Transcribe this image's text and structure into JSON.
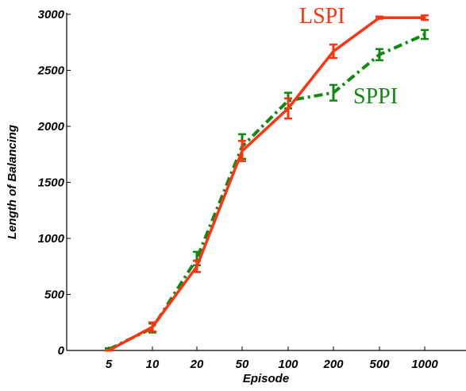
{
  "chart_data": {
    "type": "line",
    "title": "",
    "xlabel": "Episode",
    "ylabel": "Length of Balancing",
    "categories": [
      "5",
      "10",
      "20",
      "50",
      "100",
      "200",
      "500",
      "1000"
    ],
    "ylim": [
      0,
      3000
    ],
    "yticks": [
      0,
      500,
      1000,
      1500,
      2000,
      2500,
      3000
    ],
    "grid": false,
    "series": [
      {
        "name": "LSPI",
        "color": "#ff3311",
        "line_style": "solid",
        "values": [
          0,
          210,
          750,
          1780,
          2160,
          2670,
          2970,
          2970
        ],
        "errors": [
          0,
          40,
          50,
          90,
          90,
          60,
          10,
          20
        ]
      },
      {
        "name": "SPPI",
        "color": "#118811",
        "line_style": "dashdot",
        "values": [
          10,
          200,
          820,
          1820,
          2230,
          2300,
          2640,
          2820
        ],
        "errors": [
          10,
          40,
          60,
          110,
          70,
          70,
          50,
          40
        ]
      }
    ]
  }
}
